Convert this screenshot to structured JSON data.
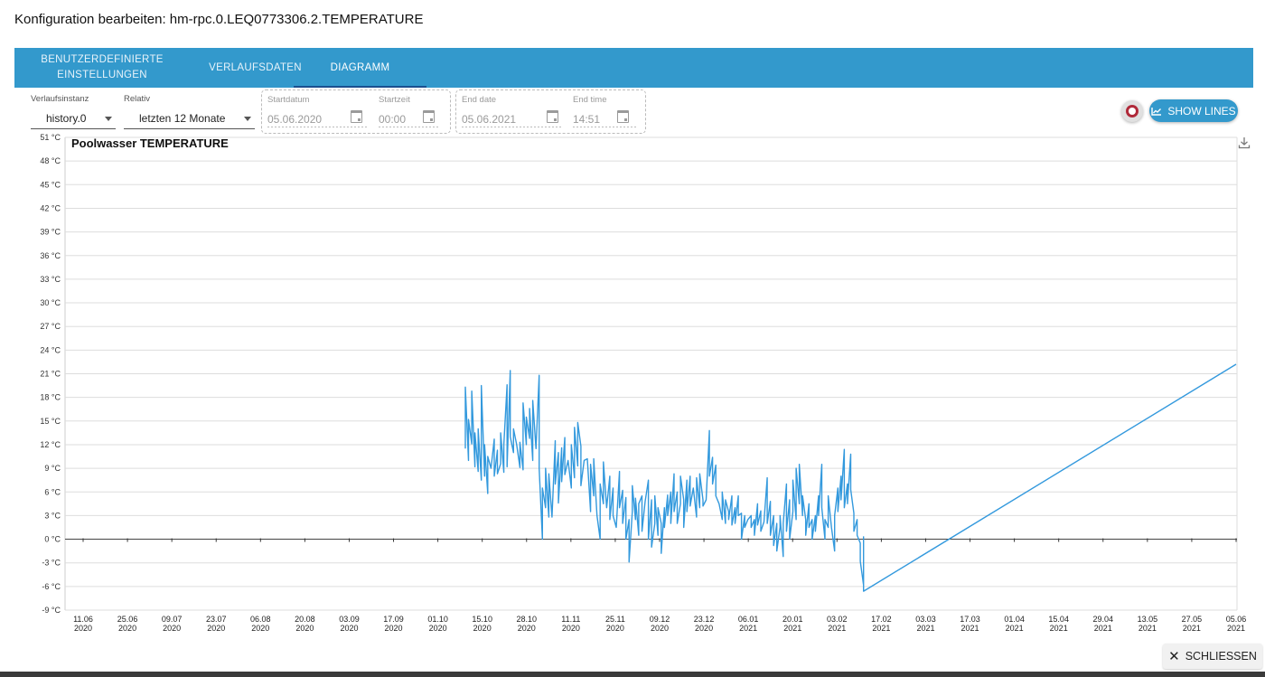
{
  "dialog": {
    "title": "Konfiguration bearbeiten: hm-rpc.0.LEQ0773306.2.TEMPERATURE"
  },
  "tabs": [
    {
      "label_line1": "BENUTZERDEFINIERTE",
      "label_line2": "EINSTELLUNGEN"
    },
    {
      "label_line1": "VERLAUFSDATEN",
      "label_line2": ""
    },
    {
      "label_line1": "DIAGRAMM",
      "label_line2": ""
    }
  ],
  "controls": {
    "instance": {
      "label": "Verlaufsinstanz",
      "value": "history.0"
    },
    "relative": {
      "label": "Relativ",
      "value": "letzten 12 Monate"
    },
    "start_date": {
      "label": "Startdatum",
      "value": "05.06.2020"
    },
    "start_time": {
      "label": "Startzeit",
      "value": "00:00"
    },
    "end_date": {
      "label": "End date",
      "value": "05.06.2021"
    },
    "end_time": {
      "label": "End time",
      "value": "14:51"
    },
    "show_lines": {
      "label": "SHOW LINES"
    }
  },
  "icons": {
    "calendar": "calendar-icon",
    "download": "download-icon",
    "close": "close-icon",
    "chart_line": "line-chart-icon",
    "record": "record-icon"
  },
  "colors": {
    "accent": "#3399cc",
    "series": "#3399dd",
    "grid": "#dddddd"
  },
  "chart_data": {
    "type": "line",
    "title": "Poolwasser TEMPERATURE",
    "y_unit": "°C",
    "ylim": [
      -9,
      51
    ],
    "y_ticks": [
      51,
      48,
      45,
      42,
      39,
      36,
      33,
      30,
      27,
      24,
      21,
      18,
      15,
      12,
      9,
      6,
      3,
      0,
      -3,
      -6,
      -9
    ],
    "y_tick_labels": [
      "51 °C",
      "48 °C",
      "45 °C",
      "42 °C",
      "39 °C",
      "36 °C",
      "33 °C",
      "30 °C",
      "27 °C",
      "24 °C",
      "21 °C",
      "18 °C",
      "15 °C",
      "12 °C",
      "9 °C",
      "6 °C",
      "3 °C",
      "0 °C",
      "-3 °C",
      "-6 °C",
      "-9 °C"
    ],
    "x_ticks": [
      {
        "day": "11.06",
        "year": "2020"
      },
      {
        "day": "25.06",
        "year": "2020"
      },
      {
        "day": "09.07",
        "year": "2020"
      },
      {
        "day": "23.07",
        "year": "2020"
      },
      {
        "day": "06.08",
        "year": "2020"
      },
      {
        "day": "20.08",
        "year": "2020"
      },
      {
        "day": "03.09",
        "year": "2020"
      },
      {
        "day": "17.09",
        "year": "2020"
      },
      {
        "day": "01.10",
        "year": "2020"
      },
      {
        "day": "15.10",
        "year": "2020"
      },
      {
        "day": "28.10",
        "year": "2020"
      },
      {
        "day": "11.11",
        "year": "2020"
      },
      {
        "day": "25.11",
        "year": "2020"
      },
      {
        "day": "09.12",
        "year": "2020"
      },
      {
        "day": "23.12",
        "year": "2020"
      },
      {
        "day": "06.01",
        "year": "2021"
      },
      {
        "day": "20.01",
        "year": "2021"
      },
      {
        "day": "03.02",
        "year": "2021"
      },
      {
        "day": "17.02",
        "year": "2021"
      },
      {
        "day": "03.03",
        "year": "2021"
      },
      {
        "day": "17.03",
        "year": "2021"
      },
      {
        "day": "01.04",
        "year": "2021"
      },
      {
        "day": "15.04",
        "year": "2021"
      },
      {
        "day": "29.04",
        "year": "2021"
      },
      {
        "day": "13.05",
        "year": "2021"
      },
      {
        "day": "27.05",
        "year": "2021"
      },
      {
        "day": "05.06",
        "year": "2021"
      }
    ],
    "series": [
      {
        "points": [
          [
            "2020-10-08",
            11.5
          ],
          [
            "2020-10-08",
            19.3
          ],
          [
            "2020-10-09",
            10.0
          ],
          [
            "2020-10-09",
            15.2
          ],
          [
            "2020-10-10",
            12.1
          ],
          [
            "2020-10-10",
            18.8
          ],
          [
            "2020-10-11",
            9.2
          ],
          [
            "2020-10-11",
            13.5
          ],
          [
            "2020-10-12",
            8.6
          ],
          [
            "2020-10-12",
            14.0
          ],
          [
            "2020-10-13",
            7.5
          ],
          [
            "2020-10-13",
            19.5
          ],
          [
            "2020-10-14",
            8.0
          ],
          [
            "2020-10-14",
            12.0
          ],
          [
            "2020-10-15",
            5.8
          ],
          [
            "2020-10-15",
            10.5
          ],
          [
            "2020-10-16",
            9.0
          ],
          [
            "2020-10-17",
            12.7
          ],
          [
            "2020-10-17",
            8.0
          ],
          [
            "2020-10-18",
            11.3
          ],
          [
            "2020-10-18",
            8.3
          ],
          [
            "2020-10-19",
            9.6
          ],
          [
            "2020-10-19",
            13.5
          ],
          [
            "2020-10-20",
            8.5
          ],
          [
            "2020-10-20",
            12.0
          ],
          [
            "2020-10-21",
            19.6
          ],
          [
            "2020-10-21",
            9.2
          ],
          [
            "2020-10-22",
            21.4
          ],
          [
            "2020-10-22",
            13.0
          ],
          [
            "2020-10-23",
            11.0
          ],
          [
            "2020-10-23",
            14.0
          ],
          [
            "2020-10-24",
            12.0
          ],
          [
            "2020-10-25",
            9.1
          ],
          [
            "2020-10-25",
            12.3
          ],
          [
            "2020-10-26",
            8.8
          ],
          [
            "2020-10-26",
            17.3
          ],
          [
            "2020-10-27",
            12.0
          ],
          [
            "2020-10-27",
            15.5
          ],
          [
            "2020-10-28",
            12.8
          ],
          [
            "2020-10-28",
            16.6
          ],
          [
            "2020-10-29",
            10.0
          ],
          [
            "2020-10-29",
            17.6
          ],
          [
            "2020-10-30",
            11.5
          ],
          [
            "2020-10-31",
            20.8
          ],
          [
            "2020-10-31",
            9.0
          ],
          [
            "2020-11-01",
            0.0
          ],
          [
            "2020-11-01",
            6.5
          ],
          [
            "2020-11-02",
            4.0
          ],
          [
            "2020-11-02",
            9.0
          ],
          [
            "2020-11-03",
            2.8
          ],
          [
            "2020-11-03",
            8.3
          ],
          [
            "2020-11-04",
            2.8
          ],
          [
            "2020-11-05",
            12.5
          ],
          [
            "2020-11-05",
            7.0
          ],
          [
            "2020-11-06",
            11.0
          ],
          [
            "2020-11-06",
            4.6
          ],
          [
            "2020-11-07",
            11.6
          ],
          [
            "2020-11-07",
            7.3
          ],
          [
            "2020-11-08",
            12.9
          ],
          [
            "2020-11-08",
            8.2
          ],
          [
            "2020-11-09",
            10.0
          ],
          [
            "2020-11-10",
            6.5
          ],
          [
            "2020-11-10",
            12.0
          ],
          [
            "2020-11-11",
            7.8
          ],
          [
            "2020-11-11",
            14.2
          ],
          [
            "2020-11-12",
            9.3
          ],
          [
            "2020-11-12",
            14.8
          ],
          [
            "2020-11-13",
            11.8
          ],
          [
            "2020-11-13",
            6.8
          ],
          [
            "2020-11-14",
            10.0
          ],
          [
            "2020-11-15",
            10.2
          ],
          [
            "2020-11-16",
            3.5
          ],
          [
            "2020-11-16",
            9.5
          ],
          [
            "2020-11-17",
            5.5
          ],
          [
            "2020-11-17",
            10.2
          ],
          [
            "2020-11-18",
            3.0
          ],
          [
            "2020-11-19",
            0.0
          ],
          [
            "2020-11-19",
            7.0
          ],
          [
            "2020-11-20",
            4.5
          ],
          [
            "2020-11-20",
            9.8
          ],
          [
            "2020-11-21",
            4.0
          ],
          [
            "2020-11-22",
            8.0
          ],
          [
            "2020-11-22",
            2.5
          ],
          [
            "2020-11-23",
            6.5
          ],
          [
            "2020-11-23",
            3.0
          ],
          [
            "2020-11-24",
            1.5
          ],
          [
            "2020-11-25",
            8.6
          ],
          [
            "2020-11-25",
            4.0
          ],
          [
            "2020-11-26",
            6.2
          ],
          [
            "2020-11-26",
            2.0
          ],
          [
            "2020-11-27",
            5.3
          ],
          [
            "2020-11-27",
            0.0
          ],
          [
            "2020-11-28",
            2.5
          ],
          [
            "2020-11-28",
            -2.9
          ],
          [
            "2020-11-29",
            3.5
          ],
          [
            "2020-11-29",
            6.8
          ],
          [
            "2020-11-30",
            2.5
          ],
          [
            "2020-11-30",
            5.2
          ],
          [
            "2020-12-01",
            0.5
          ],
          [
            "2020-12-01",
            4.5
          ],
          [
            "2020-12-02",
            5.5
          ],
          [
            "2020-12-02",
            1.0
          ],
          [
            "2020-12-03",
            4.8
          ],
          [
            "2020-12-04",
            7.5
          ],
          [
            "2020-12-04",
            0.0
          ],
          [
            "2020-12-05",
            5.0
          ],
          [
            "2020-12-05",
            -1.0
          ],
          [
            "2020-12-06",
            2.0
          ],
          [
            "2020-12-06",
            5.5
          ],
          [
            "2020-12-07",
            0.5
          ],
          [
            "2020-12-07",
            4.0
          ],
          [
            "2020-12-08",
            2.0
          ],
          [
            "2020-12-08",
            -1.8
          ],
          [
            "2020-12-09",
            4.0
          ],
          [
            "2020-12-09",
            1.5
          ],
          [
            "2020-12-10",
            5.6
          ],
          [
            "2020-12-10",
            3.0
          ],
          [
            "2020-12-11",
            6.0
          ],
          [
            "2020-12-11",
            2.0
          ],
          [
            "2020-12-12",
            8.3
          ],
          [
            "2020-12-12",
            3.5
          ],
          [
            "2020-12-13",
            6.0
          ],
          [
            "2020-12-13",
            2.0
          ],
          [
            "2020-12-14",
            4.5
          ],
          [
            "2020-12-14",
            8.0
          ],
          [
            "2020-12-15",
            5.0
          ],
          [
            "2020-12-15",
            1.5
          ],
          [
            "2020-12-16",
            7.5
          ],
          [
            "2020-12-16",
            3.5
          ],
          [
            "2020-12-17",
            8.0
          ],
          [
            "2020-12-17",
            4.2
          ],
          [
            "2020-12-18",
            6.5
          ],
          [
            "2020-12-19",
            2.8
          ],
          [
            "2020-12-19",
            7.8
          ],
          [
            "2020-12-20",
            4.0
          ],
          [
            "2020-12-20",
            8.3
          ],
          [
            "2020-12-21",
            5.0
          ],
          [
            "2020-12-21",
            4.2
          ],
          [
            "2020-12-22",
            5.0
          ],
          [
            "2020-12-23",
            13.8
          ],
          [
            "2020-12-23",
            8.0
          ],
          [
            "2020-12-24",
            10.4
          ],
          [
            "2020-12-24",
            7.0
          ],
          [
            "2020-12-25",
            9.4
          ],
          [
            "2020-12-25",
            5.5
          ],
          [
            "2020-12-26",
            4.5
          ],
          [
            "2020-12-27",
            2.5
          ],
          [
            "2020-12-27",
            6.0
          ],
          [
            "2020-12-28",
            2.0
          ],
          [
            "2020-12-28",
            5.0
          ],
          [
            "2020-12-29",
            3.5
          ],
          [
            "2020-12-29",
            2.5
          ],
          [
            "2020-12-30",
            5.5
          ],
          [
            "2020-12-30",
            1.8
          ],
          [
            "2020-12-31",
            4.0
          ],
          [
            "2020-12-31",
            2.0
          ],
          [
            "2021-01-01",
            5.5
          ],
          [
            "2021-01-01",
            3.0
          ],
          [
            "2021-01-02",
            3.3
          ],
          [
            "2021-01-02",
            0.0
          ],
          [
            "2021-01-03",
            3.0
          ],
          [
            "2021-01-03",
            1.5
          ],
          [
            "2021-01-04",
            2.5
          ],
          [
            "2021-01-05",
            3.0
          ],
          [
            "2021-01-05",
            1.5
          ],
          [
            "2021-01-06",
            2.5
          ],
          [
            "2021-01-06",
            0.5
          ],
          [
            "2021-01-07",
            4.5
          ],
          [
            "2021-01-07",
            1.8
          ],
          [
            "2021-01-08",
            3.6
          ],
          [
            "2021-01-08",
            1.0
          ],
          [
            "2021-01-09",
            2.2
          ],
          [
            "2021-01-10",
            7.8
          ],
          [
            "2021-01-10",
            2.0
          ],
          [
            "2021-01-11",
            4.8
          ],
          [
            "2021-01-11",
            0.5
          ],
          [
            "2021-01-12",
            3.0
          ],
          [
            "2021-01-12",
            -0.8
          ],
          [
            "2021-01-13",
            2.0
          ],
          [
            "2021-01-13",
            -1.5
          ],
          [
            "2021-01-14",
            1.5
          ],
          [
            "2021-01-14",
            3.0
          ],
          [
            "2021-01-15",
            -2.2
          ],
          [
            "2021-01-15",
            2.0
          ],
          [
            "2021-01-16",
            7.0
          ],
          [
            "2021-01-16",
            1.0
          ],
          [
            "2021-01-17",
            5.0
          ],
          [
            "2021-01-17",
            0.0
          ],
          [
            "2021-01-18",
            3.5
          ],
          [
            "2021-01-18",
            7.5
          ],
          [
            "2021-01-19",
            2.5
          ],
          [
            "2021-01-19",
            9.0
          ],
          [
            "2021-01-20",
            4.5
          ],
          [
            "2021-01-20",
            9.5
          ],
          [
            "2021-01-21",
            3.0
          ],
          [
            "2021-01-21",
            5.5
          ],
          [
            "2021-01-22",
            2.5
          ],
          [
            "2021-01-22",
            0.5
          ],
          [
            "2021-01-23",
            4.5
          ],
          [
            "2021-01-23",
            1.5
          ],
          [
            "2021-01-24",
            2.5
          ],
          [
            "2021-01-24",
            0.0
          ],
          [
            "2021-01-25",
            3.0
          ],
          [
            "2021-01-25",
            1.0
          ],
          [
            "2021-01-26",
            5.5
          ],
          [
            "2021-01-26",
            3.0
          ],
          [
            "2021-01-27",
            9.5
          ],
          [
            "2021-01-27",
            4.0
          ],
          [
            "2021-01-28",
            0.0
          ],
          [
            "2021-01-28",
            2.5
          ],
          [
            "2021-01-29",
            1.5
          ],
          [
            "2021-01-29",
            5.5
          ],
          [
            "2021-01-30",
            1.5
          ],
          [
            "2021-01-31",
            -1.5
          ],
          [
            "2021-01-31",
            3.0
          ],
          [
            "2021-02-01",
            6.5
          ],
          [
            "2021-02-01",
            3.5
          ],
          [
            "2021-02-02",
            8.0
          ],
          [
            "2021-02-02",
            5.0
          ],
          [
            "2021-02-03",
            11.4
          ],
          [
            "2021-02-03",
            4.0
          ],
          [
            "2021-02-04",
            7.0
          ],
          [
            "2021-02-04",
            4.5
          ],
          [
            "2021-02-05",
            10.8
          ],
          [
            "2021-02-05",
            6.3
          ],
          [
            "2021-02-06",
            3.3
          ],
          [
            "2021-02-06",
            1.0
          ],
          [
            "2021-02-07",
            2.5
          ],
          [
            "2021-02-07",
            0.5
          ],
          [
            "2021-02-08",
            -0.5
          ],
          [
            "2021-02-08",
            -2.8
          ],
          [
            "2021-02-09",
            -5.8
          ],
          [
            "2021-02-09",
            0.3
          ],
          [
            "2021-02-09",
            -6.6
          ],
          [
            "2021-06-05",
            22.2
          ]
        ]
      }
    ]
  },
  "footer": {
    "close_label": "SCHLIESSEN"
  }
}
